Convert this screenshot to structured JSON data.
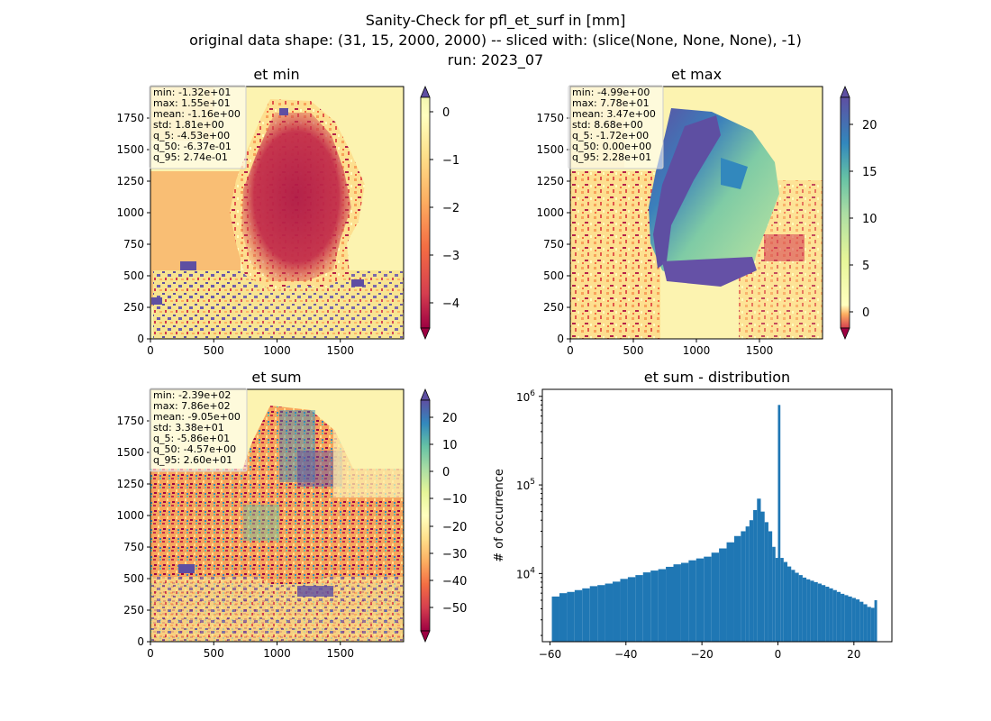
{
  "figure": {
    "title_lines": [
      "Sanity-Check for pfl_et_surf in [mm]",
      "original data shape: (31, 15, 2000, 2000) -- sliced with: (slice(None, None, None), -1)",
      "run: 2023_07"
    ]
  },
  "panels": {
    "et_min": {
      "title": "et min",
      "stats": [
        "min: -1.32e+01",
        "max: 1.55e+01",
        "mean: -1.16e+00",
        "std: 1.81e+00",
        "q_5: -4.53e+00",
        "q_50: -6.37e-01",
        "q_95: 2.74e-01"
      ],
      "x_ticks": [
        "0",
        "500",
        "1000",
        "1500"
      ],
      "y_ticks": [
        "0",
        "250",
        "500",
        "750",
        "1000",
        "1250",
        "1500",
        "1750"
      ],
      "colorbar_ticks": [
        "0",
        "−1",
        "−2",
        "−3",
        "−4"
      ]
    },
    "et_max": {
      "title": "et max",
      "stats": [
        "min: -4.99e+00",
        "max: 7.78e+01",
        "mean: 3.47e+00",
        "std: 8.68e+00",
        "q_5: -1.72e+00",
        "q_50: 0.00e+00",
        "q_95: 2.28e+01"
      ],
      "x_ticks": [
        "0",
        "500",
        "1000",
        "1500"
      ],
      "y_ticks": [
        "0",
        "250",
        "500",
        "750",
        "1000",
        "1250",
        "1500",
        "1750"
      ],
      "colorbar_ticks": [
        "20",
        "15",
        "10",
        "5",
        "0"
      ]
    },
    "et_sum": {
      "title": "et sum",
      "stats": [
        "min: -2.39e+02",
        "max: 7.86e+02",
        "mean: -9.05e+00",
        "std: 3.38e+01",
        "q_5: -5.86e+01",
        "q_50: -4.57e+00",
        "q_95: 2.60e+01"
      ],
      "x_ticks": [
        "0",
        "500",
        "1000",
        "1500"
      ],
      "y_ticks": [
        "0",
        "250",
        "500",
        "750",
        "1000",
        "1250",
        "1500",
        "1750"
      ],
      "colorbar_ticks": [
        "20",
        "10",
        "0",
        "−10",
        "−20",
        "−30",
        "−40",
        "−50"
      ]
    }
  },
  "chart_data": {
    "type": "bar",
    "title": "et sum - distribution",
    "ylabel": "# of occurrence",
    "xlabel": "",
    "yscale": "log",
    "xlim": [
      -62,
      30
    ],
    "ylim": [
      1700,
      1200000
    ],
    "x_ticks": [
      "−60",
      "−40",
      "−20",
      "0",
      "20"
    ],
    "y_ticks": [
      "10^4",
      "10^5",
      "10^6"
    ],
    "color": "#1f77b4",
    "x": [
      -58.5,
      -56.5,
      -54.5,
      -52.5,
      -50.5,
      -48.5,
      -46.5,
      -44.5,
      -42.5,
      -40.5,
      -38.5,
      -36.5,
      -34.5,
      -32.5,
      -30.5,
      -28.5,
      -26.5,
      -24.5,
      -22.5,
      -20.5,
      -18.5,
      -16.5,
      -14.5,
      -12.5,
      -10.5,
      -9,
      -8,
      -7,
      -6,
      -5,
      -4,
      -3,
      -2,
      -1,
      -0.3,
      0.3,
      1,
      2,
      3,
      4,
      5,
      6,
      7,
      8,
      9,
      10,
      11,
      12,
      13,
      14,
      15,
      16,
      17,
      18,
      19,
      20,
      21,
      22,
      23,
      24,
      25,
      25.8
    ],
    "values": [
      5500,
      6000,
      6200,
      6500,
      6800,
      7200,
      7400,
      7700,
      8100,
      8700,
      9100,
      9600,
      10300,
      10800,
      11200,
      11900,
      12700,
      13200,
      14100,
      14800,
      15500,
      17200,
      19200,
      22500,
      26500,
      30000,
      34000,
      40000,
      52000,
      70000,
      50000,
      38000,
      30000,
      20000,
      15000,
      800000,
      15000,
      13500,
      12000,
      11000,
      10200,
      9600,
      9000,
      8600,
      8300,
      8000,
      7700,
      7400,
      7100,
      6800,
      6500,
      6200,
      5900,
      5700,
      5500,
      5300,
      5100,
      4800,
      4500,
      4200,
      4100,
      5000
    ]
  }
}
